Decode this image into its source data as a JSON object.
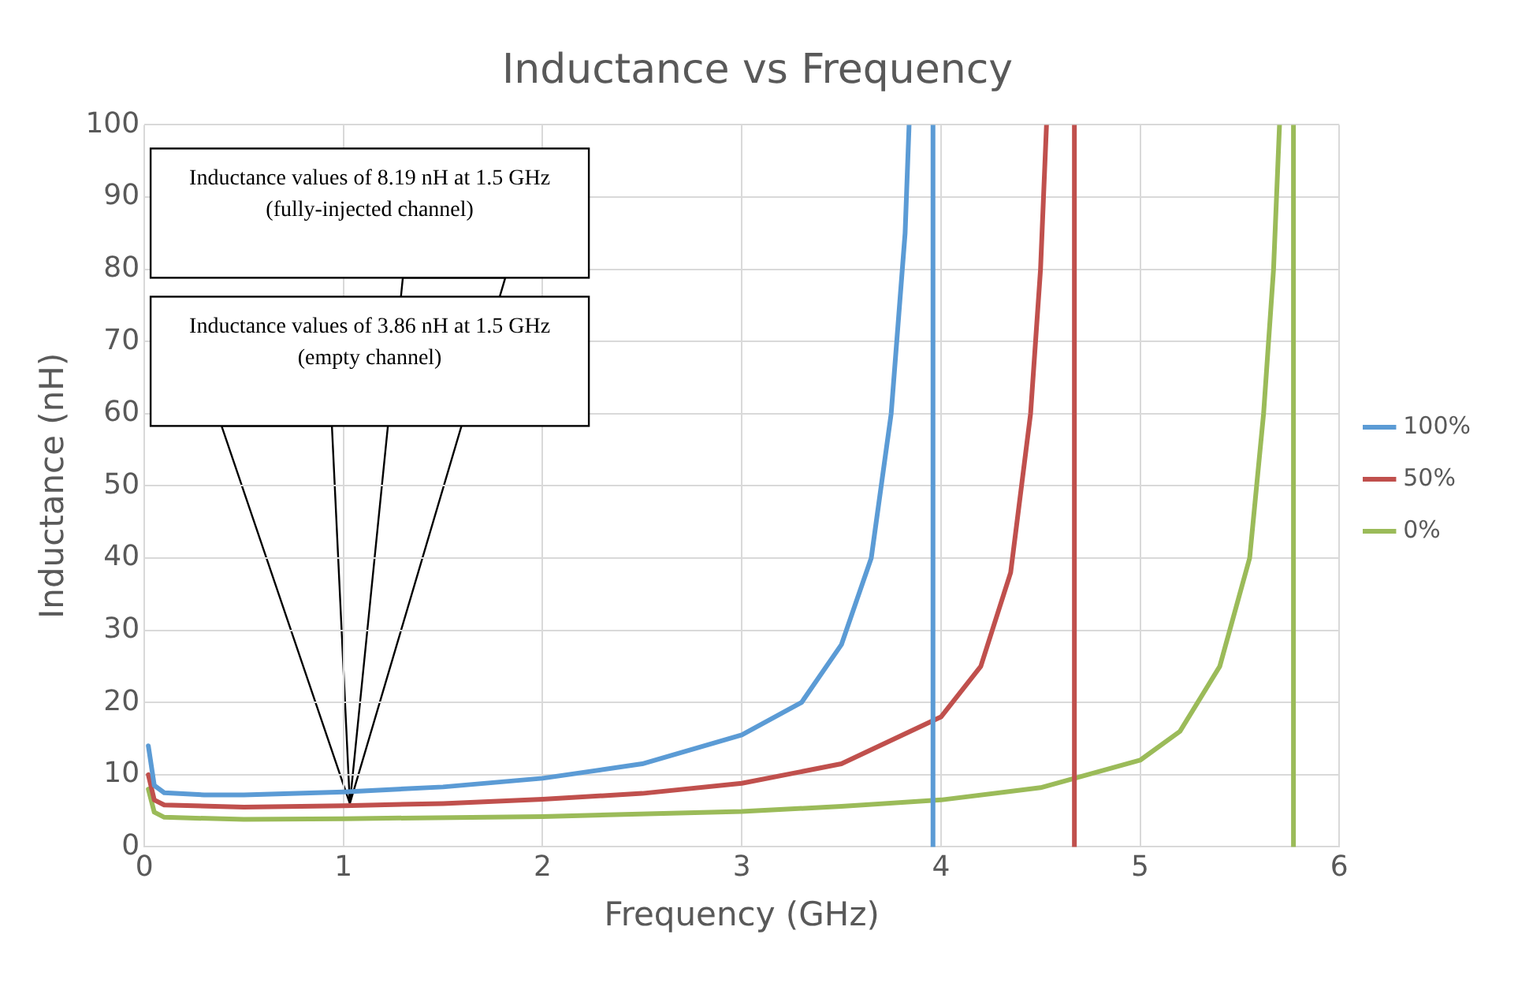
{
  "chart_data": {
    "type": "line",
    "title": "Inductance vs Frequency",
    "xlabel": "Frequency (GHz)",
    "ylabel": "Inductance (nH)",
    "xlim": [
      0,
      6
    ],
    "xticks": [
      0,
      1,
      2,
      3,
      4,
      5,
      6
    ],
    "ylim": [
      0,
      100
    ],
    "yticks": [
      0,
      10,
      20,
      30,
      40,
      50,
      60,
      70,
      80,
      90,
      100
    ],
    "grid": true,
    "legend": "right",
    "marker": "none",
    "line_style": "solid",
    "series": [
      {
        "name": "100%",
        "color": "#5b9bd5",
        "x": [
          0.02,
          0.05,
          0.1,
          0.3,
          0.5,
          1,
          1.5,
          2,
          2.5,
          3,
          3.3,
          3.5,
          3.65,
          3.75,
          3.82,
          3.84,
          3.9,
          3.96,
          3.96
        ],
        "values": [
          14,
          8.5,
          7.5,
          7.2,
          7.2,
          7.6,
          8.3,
          9.5,
          11.5,
          15.5,
          20,
          28,
          40,
          60,
          85,
          100,
          null,
          100,
          0
        ]
      },
      {
        "name": "50%",
        "color": "#c0504d",
        "x": [
          0.02,
          0.05,
          0.1,
          0.5,
          1,
          1.5,
          2,
          2.5,
          3,
          3.5,
          4,
          4.2,
          4.35,
          4.45,
          4.5,
          4.53,
          4.6,
          4.67,
          4.67
        ],
        "values": [
          10,
          6.5,
          5.8,
          5.5,
          5.7,
          6,
          6.6,
          7.4,
          8.8,
          11.5,
          18,
          25,
          38,
          60,
          80,
          100,
          null,
          100,
          0
        ]
      },
      {
        "name": "0%",
        "color": "#9bbb59",
        "x": [
          0.02,
          0.05,
          0.1,
          0.5,
          1,
          2,
          3,
          3.5,
          4,
          4.5,
          5,
          5.2,
          5.4,
          5.55,
          5.62,
          5.67,
          5.7,
          5.74,
          5.77,
          5.77
        ],
        "values": [
          8,
          4.8,
          4.1,
          3.8,
          3.9,
          4.2,
          4.9,
          5.6,
          6.5,
          8.2,
          12,
          16,
          25,
          40,
          60,
          80,
          100,
          null,
          100,
          0
        ]
      }
    ],
    "annotations": [
      "Inductance values of 8.19 nH at 1.5 GHz (fully-injected channel)",
      "Inductance values of 3.86 nH at 1.5 GHz (empty channel)"
    ]
  }
}
